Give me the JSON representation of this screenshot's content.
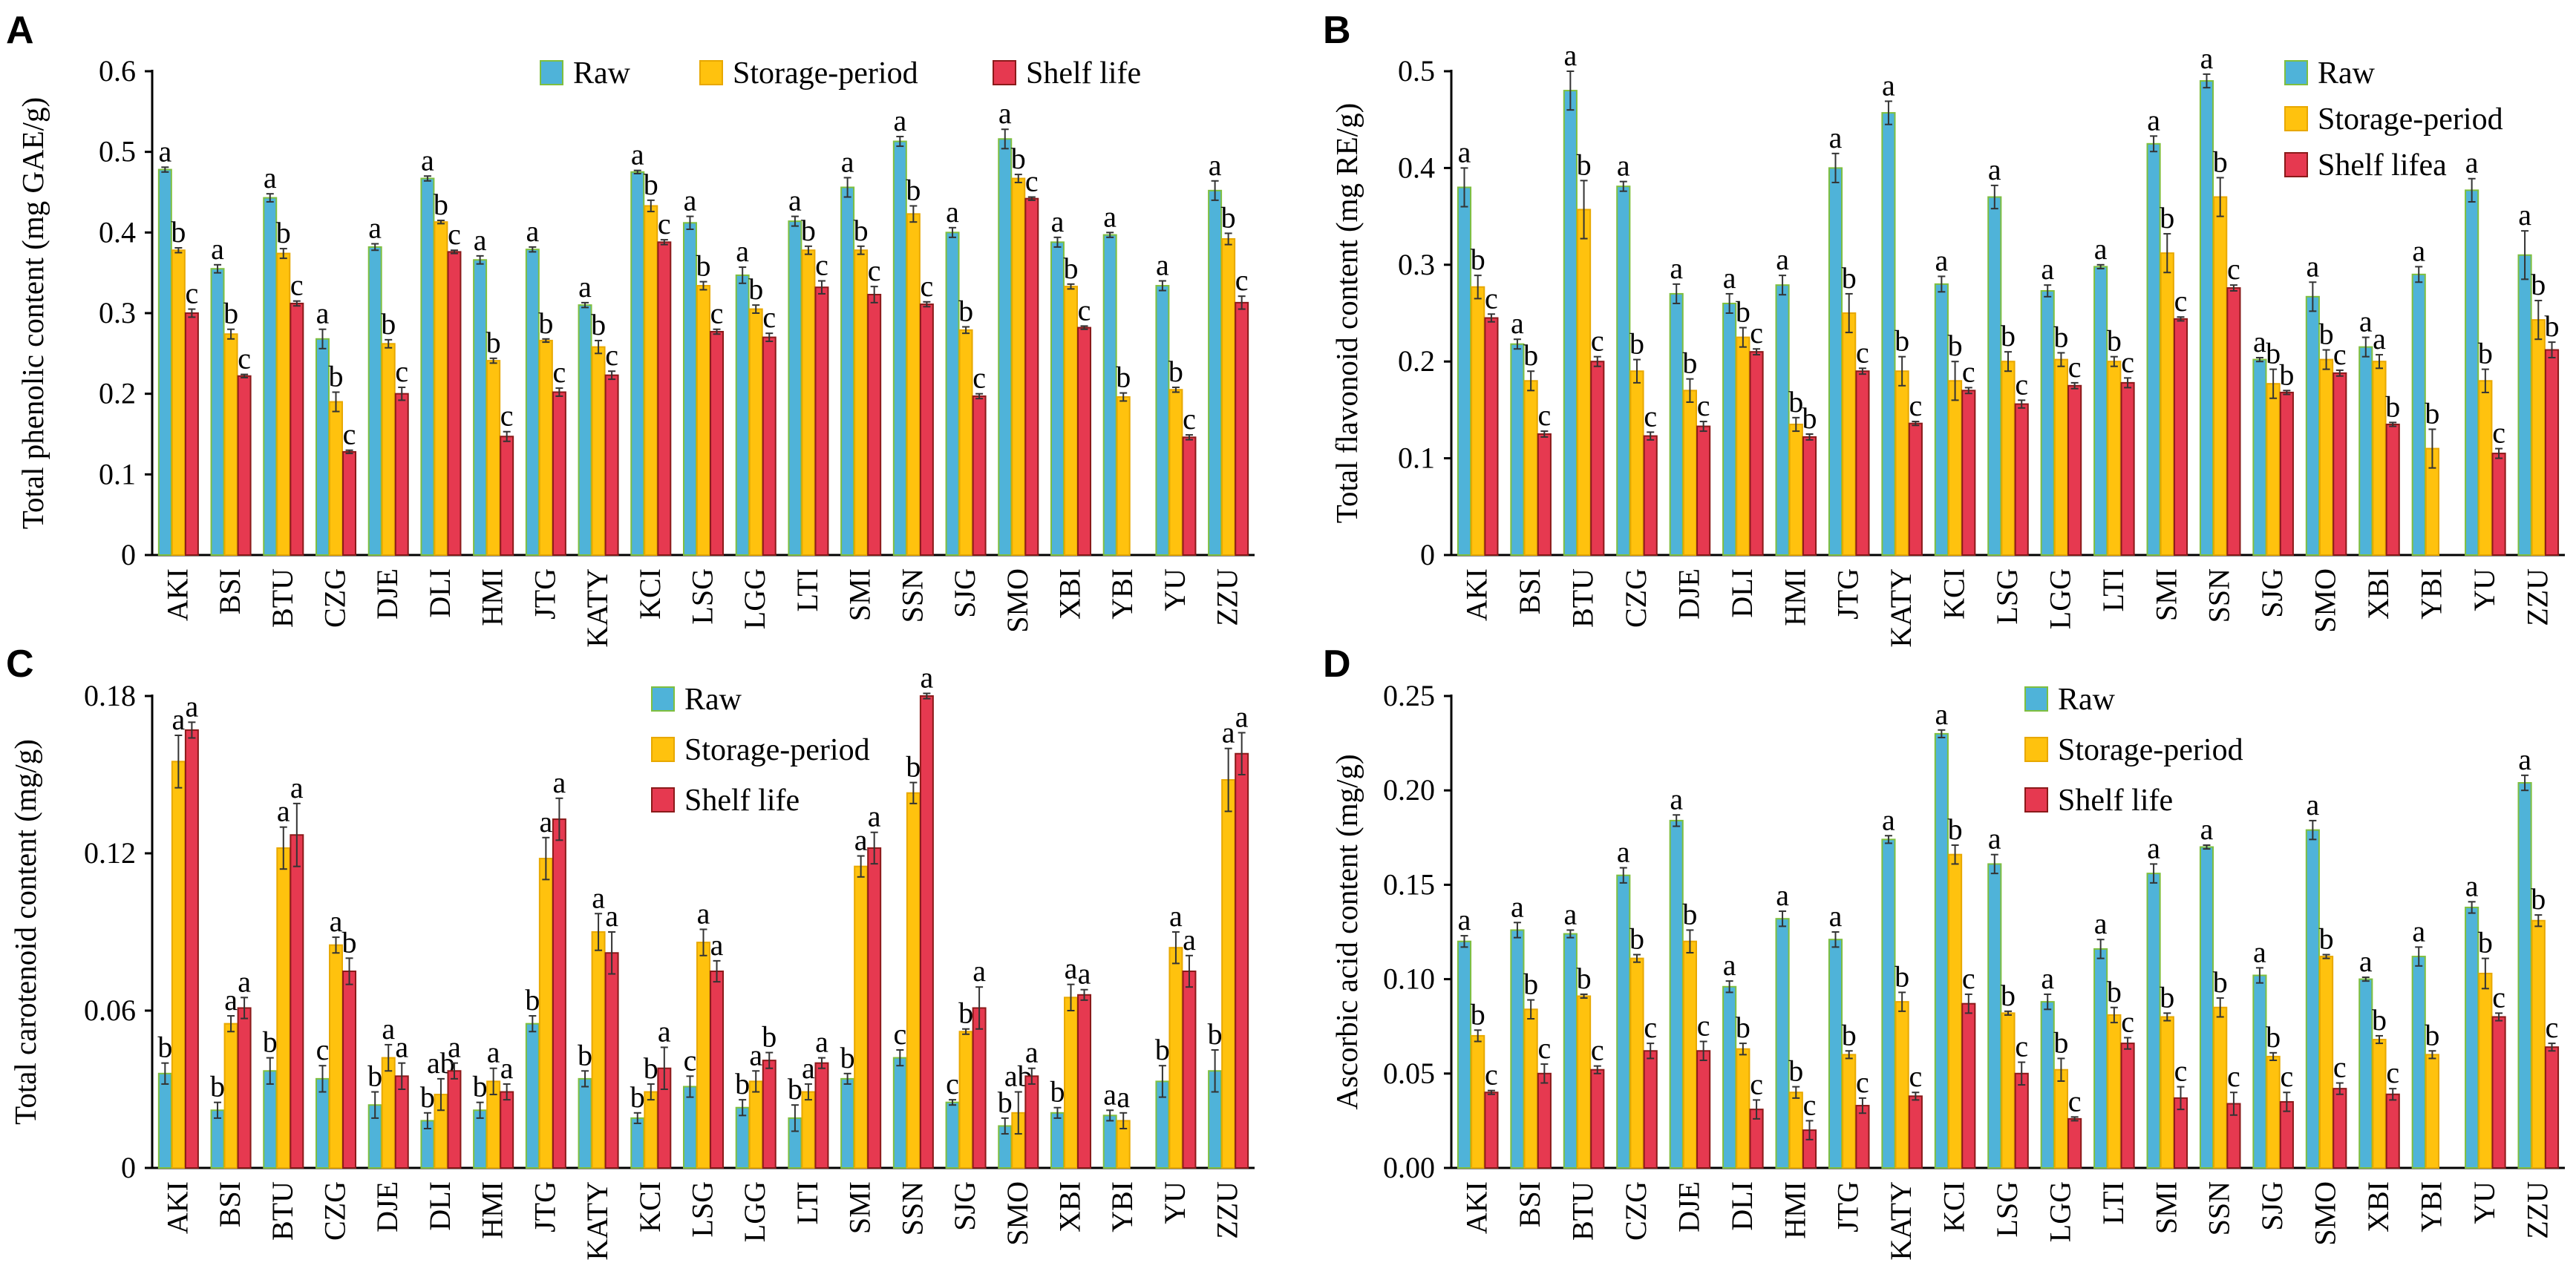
{
  "colors": {
    "raw": "#4FB3D9",
    "storage": "#FFC20E",
    "shelf": "#E63950",
    "raw_edge": "#7FBF3F",
    "storage_edge": "#E8A800",
    "shelf_edge": "#8B1A1A"
  },
  "chart_data": [
    {
      "panel": "A",
      "type": "bar",
      "ylabel": "Total phenolic content (mg GAE/g)",
      "ylim": [
        0,
        0.6
      ],
      "yticks": [
        0,
        0.1,
        0.2,
        0.3,
        0.4,
        0.5,
        0.6
      ],
      "ytick_labels": [
        "0",
        "0.1",
        "0.2",
        "0.3",
        "0.4",
        "0.5",
        "0.6"
      ],
      "legend": [
        "Raw",
        "Storage-period",
        "Shelf life"
      ],
      "legend_position": "top",
      "categories": [
        "AKI",
        "BSI",
        "BTU",
        "CZG",
        "DJE",
        "DLI",
        "HMI",
        "JTG",
        "KATY",
        "KCI",
        "LSG",
        "LGG",
        "LTI",
        "SMI",
        "SSN",
        "SJG",
        "SMO",
        "XBI",
        "YBI",
        "YU",
        "ZZU"
      ],
      "series": [
        {
          "name": "Raw",
          "values": [
            0.478,
            0.355,
            0.443,
            0.268,
            0.382,
            0.467,
            0.366,
            0.379,
            0.31,
            0.475,
            0.412,
            0.347,
            0.414,
            0.456,
            0.513,
            0.4,
            0.516,
            0.388,
            0.397,
            0.334,
            0.452
          ],
          "errors": [
            0.003,
            0.005,
            0.005,
            0.012,
            0.004,
            0.003,
            0.005,
            0.003,
            0.003,
            0.002,
            0.008,
            0.01,
            0.006,
            0.012,
            0.006,
            0.006,
            0.012,
            0.006,
            0.003,
            0.006,
            0.012
          ],
          "letters": [
            "a",
            "a",
            "a",
            "a",
            "a",
            "a",
            "a",
            "a",
            "a",
            "a",
            "a",
            "a",
            "a",
            "a",
            "a",
            "a",
            "a",
            "a",
            "a",
            "a",
            "a"
          ]
        },
        {
          "name": "Storage-period",
          "values": [
            0.378,
            0.274,
            0.374,
            0.19,
            0.262,
            0.413,
            0.241,
            0.266,
            0.258,
            0.433,
            0.334,
            0.305,
            0.378,
            0.378,
            0.423,
            0.279,
            0.467,
            0.333,
            0.196,
            0.205,
            0.392
          ],
          "errors": [
            0.003,
            0.006,
            0.006,
            0.012,
            0.005,
            0.002,
            0.003,
            0.002,
            0.008,
            0.007,
            0.005,
            0.005,
            0.005,
            0.005,
            0.01,
            0.004,
            0.005,
            0.003,
            0.005,
            0.003,
            0.007
          ],
          "letters": [
            "b",
            "b",
            "b",
            "b",
            "b",
            "b",
            "b",
            "b",
            "b",
            "b",
            "b",
            "b",
            "b",
            "b",
            "b",
            "b",
            "b",
            "b",
            "b",
            "b",
            "b"
          ]
        },
        {
          "name": "Shelf life",
          "values": [
            0.3,
            0.222,
            0.312,
            0.128,
            0.2,
            0.376,
            0.147,
            0.202,
            0.223,
            0.388,
            0.277,
            0.27,
            0.332,
            0.323,
            0.311,
            0.197,
            0.442,
            0.282,
            null,
            0.146,
            0.313
          ],
          "errors": [
            0.005,
            0.002,
            0.003,
            0.002,
            0.008,
            0.002,
            0.006,
            0.005,
            0.005,
            0.003,
            0.003,
            0.005,
            0.008,
            0.01,
            0.003,
            0.003,
            0.002,
            0.002,
            null,
            0.003,
            0.008
          ],
          "letters": [
            "c",
            "c",
            "c",
            "c",
            "c",
            "c",
            "c",
            "c",
            "c",
            "c",
            "c",
            "c",
            "c",
            "c",
            "c",
            "c",
            "c",
            "c",
            "",
            "c",
            "c"
          ]
        }
      ]
    },
    {
      "panel": "B",
      "type": "bar",
      "ylabel": "Total flavonoid content (mg RE/g)",
      "ylim": [
        0,
        0.5
      ],
      "yticks": [
        0,
        0.1,
        0.2,
        0.3,
        0.4,
        0.5
      ],
      "ytick_labels": [
        "0",
        "0.1",
        "0.2",
        "0.3",
        "0.4",
        "0.5"
      ],
      "legend": [
        "Raw",
        "Storage-period",
        "Shelf lifea"
      ],
      "legend_position": "top-right",
      "categories": [
        "AKI",
        "BSI",
        "BTU",
        "CZG",
        "DJE",
        "DLI",
        "HMI",
        "JTG",
        "KATY",
        "KCI",
        "LSG",
        "LGG",
        "LTI",
        "SMI",
        "SSN",
        "SJG",
        "SMO",
        "XBI",
        "YBI",
        "YU",
        "ZZU"
      ],
      "series": [
        {
          "name": "Raw",
          "values": [
            0.38,
            0.218,
            0.48,
            0.381,
            0.27,
            0.26,
            0.279,
            0.4,
            0.457,
            0.28,
            0.37,
            0.273,
            0.298,
            0.425,
            0.49,
            0.202,
            0.267,
            0.215,
            0.29,
            0.377,
            0.31
          ],
          "errors": [
            0.02,
            0.005,
            0.02,
            0.005,
            0.01,
            0.01,
            0.01,
            0.015,
            0.012,
            0.008,
            0.012,
            0.006,
            0.002,
            0.008,
            0.007,
            0.002,
            0.015,
            0.01,
            0.008,
            0.012,
            0.025
          ],
          "letters": [
            "a",
            "a",
            "a",
            "a",
            "a",
            "a",
            "a",
            "a",
            "a",
            "a",
            "a",
            "a",
            "a",
            "a",
            "a",
            "a",
            "a",
            "a",
            "a",
            "a",
            "a"
          ]
        },
        {
          "name": "Storage-period",
          "values": [
            0.277,
            0.18,
            0.357,
            0.19,
            0.17,
            0.225,
            0.135,
            0.25,
            0.19,
            0.18,
            0.2,
            0.202,
            0.2,
            0.312,
            0.37,
            0.177,
            0.202,
            0.2,
            0.11,
            0.18,
            0.243
          ],
          "errors": [
            0.012,
            0.01,
            0.03,
            0.012,
            0.012,
            0.01,
            0.007,
            0.02,
            0.015,
            0.02,
            0.01,
            0.007,
            0.005,
            0.02,
            0.02,
            0.015,
            0.01,
            0.007,
            0.02,
            0.012,
            0.02
          ],
          "letters": [
            "b",
            "b",
            "b",
            "b",
            "b",
            "b",
            "b",
            "b",
            "b",
            "b",
            "b",
            "b",
            "b",
            "b",
            "b",
            "b",
            "b",
            "a",
            "b",
            "b",
            "b"
          ]
        },
        {
          "name": "Shelf lifea",
          "values": [
            0.245,
            0.125,
            0.2,
            0.123,
            0.133,
            0.21,
            0.122,
            0.19,
            0.136,
            0.17,
            0.156,
            0.175,
            0.178,
            0.244,
            0.276,
            0.168,
            0.188,
            0.135,
            null,
            0.105,
            0.212
          ],
          "errors": [
            0.004,
            0.003,
            0.005,
            0.004,
            0.005,
            0.003,
            0.003,
            0.003,
            0.002,
            0.003,
            0.004,
            0.003,
            0.005,
            0.002,
            0.003,
            0.002,
            0.003,
            0.002,
            null,
            0.005,
            0.008
          ],
          "letters": [
            "c",
            "c",
            "c",
            "c",
            "c",
            "c",
            "b",
            "c",
            "c",
            "c",
            "c",
            "c",
            "c",
            "c",
            "c",
            "b",
            "c",
            "b",
            "",
            "c",
            "b"
          ]
        }
      ]
    },
    {
      "panel": "C",
      "type": "bar",
      "ylabel": "Total carotenoid content (mg/g)",
      "ylim": [
        0,
        0.18
      ],
      "yticks": [
        0,
        0.06,
        0.12,
        0.18
      ],
      "ytick_labels": [
        "0",
        "0.06",
        "0.12",
        "0.18"
      ],
      "legend": [
        "Raw",
        "Storage-period",
        "Shelf life"
      ],
      "legend_position": "top",
      "categories": [
        "AKI",
        "BSI",
        "BTU",
        "CZG",
        "DJE",
        "DLI",
        "HMI",
        "JTG",
        "KATY",
        "KCI",
        "LSG",
        "LGG",
        "LTI",
        "SMI",
        "SSN",
        "SJG",
        "SMO",
        "XBI",
        "YBI",
        "YU",
        "ZZU"
      ],
      "series": [
        {
          "name": "Raw",
          "values": [
            0.036,
            0.022,
            0.037,
            0.034,
            0.024,
            0.018,
            0.022,
            0.055,
            0.034,
            0.019,
            0.031,
            0.023,
            0.019,
            0.034,
            0.042,
            0.025,
            0.016,
            0.021,
            0.02,
            0.033,
            0.037
          ],
          "errors": [
            0.004,
            0.003,
            0.005,
            0.005,
            0.005,
            0.003,
            0.003,
            0.003,
            0.003,
            0.002,
            0.004,
            0.003,
            0.005,
            0.002,
            0.003,
            0.001,
            0.003,
            0.002,
            0.002,
            0.006,
            0.008
          ],
          "letters": [
            "b",
            "b",
            "b",
            "c",
            "b",
            "b",
            "b",
            "b",
            "b",
            "b",
            "c",
            "b",
            "b",
            "b",
            "c",
            "c",
            "b",
            "b",
            "a",
            "b",
            "b"
          ]
        },
        {
          "name": "Storage-period",
          "values": [
            0.155,
            0.055,
            0.122,
            0.085,
            0.042,
            0.028,
            0.033,
            0.118,
            0.09,
            0.029,
            0.086,
            0.033,
            0.029,
            0.115,
            0.143,
            0.052,
            0.021,
            0.065,
            0.018,
            0.084,
            0.148
          ],
          "errors": [
            0.01,
            0.003,
            0.008,
            0.003,
            0.005,
            0.006,
            0.005,
            0.008,
            0.007,
            0.003,
            0.005,
            0.004,
            0.003,
            0.004,
            0.004,
            0.001,
            0.008,
            0.005,
            0.003,
            0.006,
            0.012
          ],
          "letters": [
            "a",
            "a",
            "a",
            "a",
            "a",
            "ab",
            "a",
            "a",
            "a",
            "b",
            "a",
            "a",
            "a",
            "a",
            "b",
            "b",
            "ab",
            "a",
            "a",
            "a",
            "a"
          ]
        },
        {
          "name": "Shelf life",
          "values": [
            0.167,
            0.061,
            0.127,
            0.075,
            0.035,
            0.037,
            0.029,
            0.133,
            0.082,
            0.038,
            0.075,
            0.041,
            0.04,
            0.122,
            0.18,
            0.061,
            0.035,
            0.066,
            null,
            0.075,
            0.158
          ],
          "errors": [
            0.003,
            0.004,
            0.012,
            0.005,
            0.005,
            0.003,
            0.003,
            0.008,
            0.008,
            0.008,
            0.004,
            0.003,
            0.002,
            0.006,
            0.001,
            0.008,
            0.003,
            0.002,
            null,
            0.006,
            0.008
          ],
          "letters": [
            "a",
            "a",
            "a",
            "b",
            "a",
            "a",
            "a",
            "a",
            "a",
            "a",
            "a",
            "b",
            "a",
            "a",
            "a",
            "a",
            "a",
            "a",
            "",
            "a",
            "a"
          ]
        }
      ]
    },
    {
      "panel": "D",
      "type": "bar",
      "ylabel": "Ascorbic acid content (mg/g)",
      "ylim": [
        0,
        0.25
      ],
      "yticks": [
        0,
        0.05,
        0.1,
        0.15,
        0.2,
        0.25
      ],
      "ytick_labels": [
        "0.00",
        "0.05",
        "0.10",
        "0.15",
        "0.20",
        "0.25"
      ],
      "legend": [
        "Raw",
        "Storage-period",
        "Shelf life"
      ],
      "legend_position": "top",
      "categories": [
        "AKI",
        "BSI",
        "BTU",
        "CZG",
        "DJE",
        "DLI",
        "HMI",
        "JTG",
        "KATY",
        "KCI",
        "LSG",
        "LGG",
        "LTI",
        "SMI",
        "SSN",
        "SJG",
        "SMO",
        "XBI",
        "YBI",
        "YU",
        "ZZU"
      ],
      "series": [
        {
          "name": "Raw",
          "values": [
            0.12,
            0.126,
            0.124,
            0.155,
            0.184,
            0.096,
            0.132,
            0.121,
            0.174,
            0.23,
            0.161,
            0.088,
            0.116,
            0.156,
            0.17,
            0.102,
            0.179,
            0.1,
            0.112,
            0.138,
            0.204
          ],
          "errors": [
            0.003,
            0.004,
            0.002,
            0.004,
            0.003,
            0.003,
            0.004,
            0.004,
            0.002,
            0.002,
            0.005,
            0.004,
            0.005,
            0.005,
            0.001,
            0.004,
            0.005,
            0.001,
            0.005,
            0.003,
            0.004
          ],
          "letters": [
            "a",
            "a",
            "a",
            "a",
            "a",
            "a",
            "a",
            "a",
            "a",
            "a",
            "a",
            "a",
            "a",
            "a",
            "a",
            "a",
            "a",
            "a",
            "a",
            "a",
            "a"
          ]
        },
        {
          "name": "Storage-period",
          "values": [
            0.07,
            0.084,
            0.091,
            0.111,
            0.12,
            0.063,
            0.04,
            0.06,
            0.088,
            0.166,
            0.082,
            0.052,
            0.081,
            0.08,
            0.085,
            0.059,
            0.112,
            0.068,
            0.06,
            0.103,
            0.131
          ],
          "errors": [
            0.003,
            0.005,
            0.001,
            0.002,
            0.006,
            0.003,
            0.003,
            0.002,
            0.005,
            0.005,
            0.001,
            0.006,
            0.004,
            0.002,
            0.005,
            0.002,
            0.001,
            0.002,
            0.002,
            0.008,
            0.003
          ],
          "letters": [
            "b",
            "b",
            "b",
            "b",
            "b",
            "b",
            "b",
            "b",
            "b",
            "b",
            "b",
            "b",
            "b",
            "b",
            "b",
            "b",
            "b",
            "b",
            "b",
            "b",
            "b"
          ]
        },
        {
          "name": "Shelf life",
          "values": [
            0.04,
            0.05,
            0.052,
            0.062,
            0.062,
            0.031,
            0.02,
            0.033,
            0.038,
            0.087,
            0.05,
            0.026,
            0.066,
            0.037,
            0.034,
            0.035,
            0.042,
            0.039,
            null,
            0.08,
            0.064
          ],
          "errors": [
            0.001,
            0.005,
            0.002,
            0.004,
            0.005,
            0.005,
            0.005,
            0.004,
            0.002,
            0.005,
            0.006,
            0.001,
            0.003,
            0.006,
            0.006,
            0.005,
            0.003,
            0.003,
            null,
            0.002,
            0.002
          ],
          "letters": [
            "c",
            "c",
            "c",
            "c",
            "c",
            "c",
            "c",
            "c",
            "c",
            "c",
            "c",
            "c",
            "c",
            "c",
            "c",
            "c",
            "c",
            "c",
            "",
            "c",
            "c"
          ]
        }
      ]
    }
  ]
}
